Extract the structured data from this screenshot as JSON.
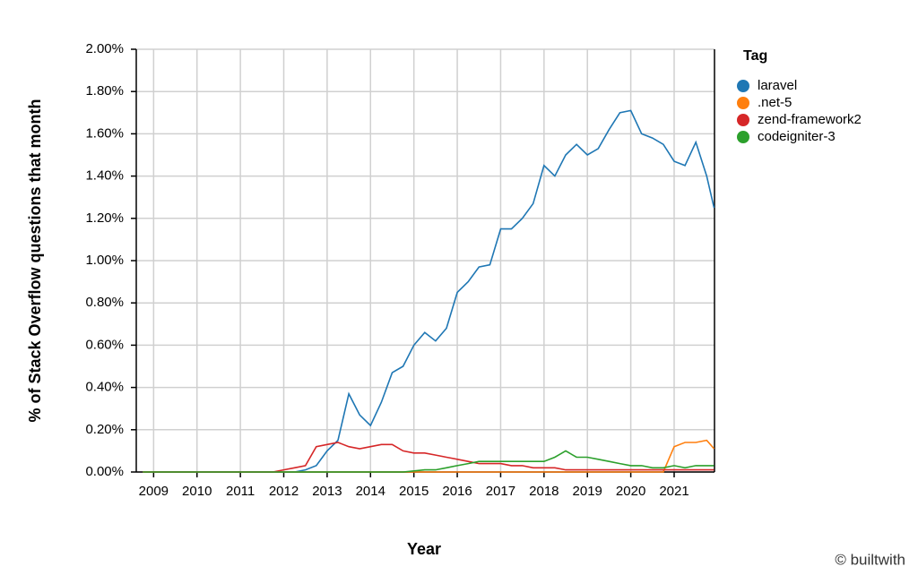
{
  "chart_data": {
    "type": "line",
    "x_label": "Year",
    "y_label": "% of Stack Overflow questions that month",
    "legend_title": "Tag",
    "legend": "top-right-outside",
    "grid": true,
    "credit": "© builtwith",
    "xlim": [
      2008.6,
      2021.93
    ],
    "xticks": [
      2009,
      2010,
      2011,
      2012,
      2013,
      2014,
      2015,
      2016,
      2017,
      2018,
      2019,
      2020,
      2021
    ],
    "ylim": [
      0,
      2
    ],
    "yticks": [
      {
        "value": 0,
        "label": "0.00%"
      },
      {
        "value": 0.2,
        "label": "0.20%"
      },
      {
        "value": 0.4,
        "label": "0.40%"
      },
      {
        "value": 0.6,
        "label": "0.60%"
      },
      {
        "value": 0.8,
        "label": "0.80%"
      },
      {
        "value": 1.0,
        "label": "1.00%"
      },
      {
        "value": 1.2,
        "label": "1.20%"
      },
      {
        "value": 1.4,
        "label": "1.40%"
      },
      {
        "value": 1.6,
        "label": "1.60%"
      },
      {
        "value": 1.8,
        "label": "1.80%"
      },
      {
        "value": 2.0,
        "label": "2.00%"
      }
    ],
    "x": [
      2008.75,
      2009,
      2009.25,
      2009.5,
      2009.75,
      2010,
      2010.25,
      2010.5,
      2010.75,
      2011,
      2011.25,
      2011.5,
      2011.75,
      2012,
      2012.25,
      2012.5,
      2012.75,
      2013,
      2013.25,
      2013.5,
      2013.75,
      2014,
      2014.25,
      2014.5,
      2014.75,
      2015,
      2015.25,
      2015.5,
      2015.75,
      2016,
      2016.25,
      2016.5,
      2016.75,
      2017,
      2017.25,
      2017.5,
      2017.75,
      2018,
      2018.25,
      2018.5,
      2018.75,
      2019,
      2019.25,
      2019.5,
      2019.75,
      2020,
      2020.25,
      2020.5,
      2020.75,
      2021,
      2021.25,
      2021.5,
      2021.75,
      2021.92
    ],
    "series": [
      {
        "name": "laravel",
        "color": "#1f77b4",
        "values": [
          0,
          0,
          0,
          0,
          0,
          0,
          0,
          0,
          0,
          0,
          0,
          0,
          0,
          0,
          0,
          0.01,
          0.03,
          0.1,
          0.15,
          0.37,
          0.27,
          0.22,
          0.33,
          0.47,
          0.5,
          0.6,
          0.66,
          0.62,
          0.68,
          0.85,
          0.9,
          0.97,
          0.98,
          1.15,
          1.15,
          1.2,
          1.27,
          1.45,
          1.4,
          1.5,
          1.55,
          1.5,
          1.53,
          1.62,
          1.7,
          1.71,
          1.6,
          1.58,
          1.55,
          1.47,
          1.45,
          1.56,
          1.4,
          1.25
        ]
      },
      {
        "name": ".net-5",
        "color": "#ff7f0e",
        "values": [
          0,
          0,
          0,
          0,
          0,
          0,
          0,
          0,
          0,
          0,
          0,
          0,
          0,
          0,
          0,
          0,
          0,
          0,
          0,
          0,
          0,
          0,
          0,
          0,
          0,
          0,
          0,
          0,
          0,
          0,
          0,
          0,
          0,
          0,
          0,
          0,
          0,
          0,
          0,
          0,
          0,
          0,
          0,
          0,
          0,
          0,
          0,
          0,
          0,
          0.12,
          0.14,
          0.14,
          0.15,
          0.11
        ]
      },
      {
        "name": "zend-framework2",
        "color": "#d62728",
        "values": [
          0,
          0,
          0,
          0,
          0,
          0,
          0,
          0,
          0,
          0,
          0,
          0,
          0,
          0.01,
          0.02,
          0.03,
          0.12,
          0.13,
          0.14,
          0.12,
          0.11,
          0.12,
          0.13,
          0.13,
          0.1,
          0.09,
          0.09,
          0.08,
          0.07,
          0.06,
          0.05,
          0.04,
          0.04,
          0.04,
          0.03,
          0.03,
          0.02,
          0.02,
          0.02,
          0.01,
          0.01,
          0.01,
          0.01,
          0.01,
          0.01,
          0.01,
          0.01,
          0.01,
          0.01,
          0.01,
          0.01,
          0.01,
          0.01,
          0.01
        ]
      },
      {
        "name": "codeigniter-3",
        "color": "#2ca02c",
        "values": [
          0,
          0,
          0,
          0,
          0,
          0,
          0,
          0,
          0,
          0,
          0,
          0,
          0,
          0,
          0,
          0,
          0,
          0,
          0,
          0,
          0,
          0,
          0,
          0,
          0,
          0.005,
          0.01,
          0.01,
          0.02,
          0.03,
          0.04,
          0.05,
          0.05,
          0.05,
          0.05,
          0.05,
          0.05,
          0.05,
          0.07,
          0.1,
          0.07,
          0.07,
          0.06,
          0.05,
          0.04,
          0.03,
          0.03,
          0.02,
          0.02,
          0.03,
          0.02,
          0.03,
          0.03,
          0.03
        ]
      }
    ]
  }
}
